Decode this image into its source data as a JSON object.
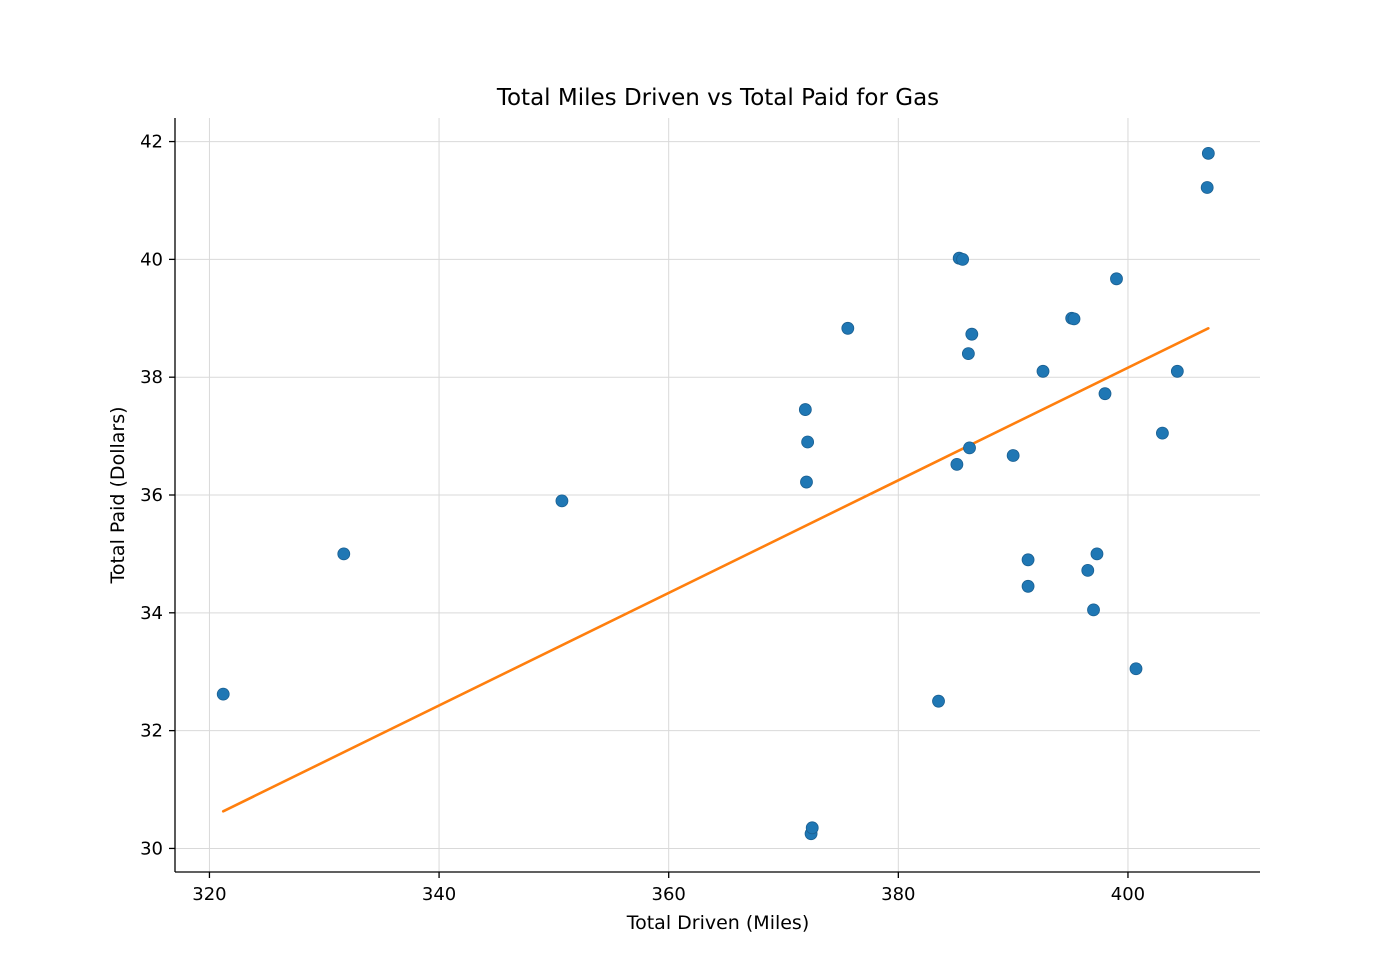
{
  "chart_data": {
    "type": "scatter",
    "title": "Total Miles Driven vs Total Paid for Gas",
    "xlabel": "Total Driven (Miles)",
    "ylabel": "Total Paid (Dollars)",
    "xlim": [
      317,
      411.5
    ],
    "ylim": [
      29.6,
      42.4
    ],
    "xticks": [
      320,
      340,
      360,
      380,
      400
    ],
    "yticks": [
      30,
      32,
      34,
      36,
      38,
      40,
      42
    ],
    "grid": true,
    "colors": {
      "points": "#1f77b4",
      "trend": "#ff7f0e"
    },
    "points": [
      {
        "x": 321.2,
        "y": 32.62
      },
      {
        "x": 331.7,
        "y": 35.0
      },
      {
        "x": 350.7,
        "y": 35.9
      },
      {
        "x": 371.9,
        "y": 37.45
      },
      {
        "x": 372.1,
        "y": 36.9
      },
      {
        "x": 372.0,
        "y": 36.22
      },
      {
        "x": 372.4,
        "y": 30.25
      },
      {
        "x": 372.5,
        "y": 30.35
      },
      {
        "x": 375.6,
        "y": 38.83
      },
      {
        "x": 383.5,
        "y": 32.5
      },
      {
        "x": 385.1,
        "y": 36.52
      },
      {
        "x": 385.3,
        "y": 40.02
      },
      {
        "x": 385.6,
        "y": 40.0
      },
      {
        "x": 386.1,
        "y": 38.4
      },
      {
        "x": 386.2,
        "y": 36.8
      },
      {
        "x": 386.4,
        "y": 38.73
      },
      {
        "x": 390.0,
        "y": 36.67
      },
      {
        "x": 391.3,
        "y": 34.9
      },
      {
        "x": 391.3,
        "y": 34.45
      },
      {
        "x": 392.6,
        "y": 38.1
      },
      {
        "x": 395.1,
        "y": 39.0
      },
      {
        "x": 395.3,
        "y": 38.99
      },
      {
        "x": 396.5,
        "y": 34.72
      },
      {
        "x": 397.0,
        "y": 34.05
      },
      {
        "x": 397.3,
        "y": 35.0
      },
      {
        "x": 398.0,
        "y": 37.72
      },
      {
        "x": 399.0,
        "y": 39.67
      },
      {
        "x": 400.7,
        "y": 33.05
      },
      {
        "x": 403.0,
        "y": 37.05
      },
      {
        "x": 404.3,
        "y": 38.1
      },
      {
        "x": 406.9,
        "y": 41.22
      },
      {
        "x": 407.0,
        "y": 41.8
      }
    ],
    "trend_line": [
      {
        "x": 321.2,
        "y": 30.63
      },
      {
        "x": 407.0,
        "y": 38.83
      }
    ]
  }
}
